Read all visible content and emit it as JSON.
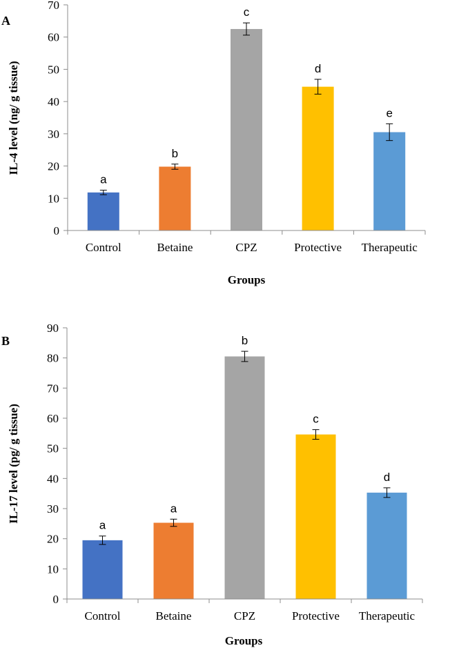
{
  "chart_data": [
    {
      "panel_label": "A",
      "type": "bar",
      "categories": [
        "Control",
        "Betaine",
        "CPZ",
        "Protective",
        "Therapeutic"
      ],
      "values": [
        11.8,
        19.8,
        62.5,
        44.6,
        30.5
      ],
      "errors": [
        0.7,
        0.8,
        1.9,
        2.3,
        2.6
      ],
      "significance": [
        "a",
        "b",
        "c",
        "d",
        "e"
      ],
      "colors": [
        "#4472c4",
        "#ed7d31",
        "#a5a5a5",
        "#ffc000",
        "#5b9bd5"
      ],
      "ylabel": "IL-4 level (ng/ g tissue)",
      "xlabel": "Groups",
      "ylim": [
        0,
        70
      ],
      "yticks": [
        0,
        10,
        20,
        30,
        40,
        50,
        60,
        70
      ],
      "grid": false
    },
    {
      "panel_label": "B",
      "type": "bar",
      "categories": [
        "Control",
        "Betaine",
        "CPZ",
        "Protective",
        "Therapeutic"
      ],
      "values": [
        19.5,
        25.3,
        80.5,
        54.6,
        35.3
      ],
      "errors": [
        1.4,
        1.2,
        1.7,
        1.6,
        1.6
      ],
      "significance": [
        "a",
        "a",
        "b",
        "c",
        "d"
      ],
      "colors": [
        "#4472c4",
        "#ed7d31",
        "#a5a5a5",
        "#ffc000",
        "#5b9bd5"
      ],
      "ylabel": "IL-17 level (pg/ g tissue)",
      "xlabel": "Groups",
      "ylim": [
        0,
        90
      ],
      "yticks": [
        0,
        10,
        20,
        30,
        40,
        50,
        60,
        70,
        80,
        90
      ],
      "grid": false
    }
  ]
}
